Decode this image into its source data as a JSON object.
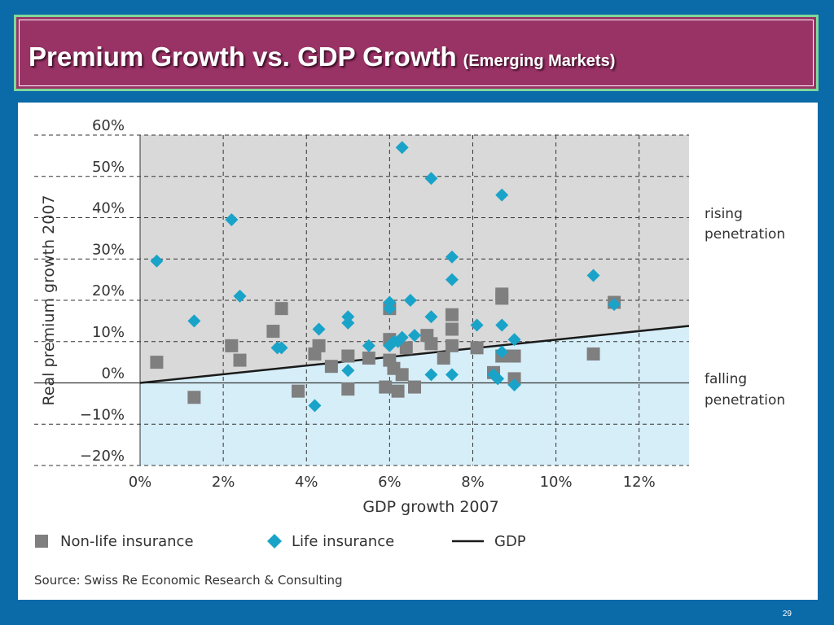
{
  "title": {
    "main": "Premium Growth vs. GDP Growth",
    "sub": "(Emerging Markets)"
  },
  "page_number": "29",
  "colors": {
    "background": "#0b6aa8",
    "title_bar": "#993366",
    "title_border": "#7fd89a",
    "rising_zone": "#d9d9d9",
    "falling_zone": "#d6eef8",
    "nonlife": "#7f7f7f",
    "life": "#1aa3c8",
    "gdp_line": "#1a1a1a"
  },
  "chart_data": {
    "type": "scatter",
    "xlabel": "GDP growth 2007",
    "ylabel": "Real premium growth 2007",
    "xlim": [
      0,
      13.2
    ],
    "ylim": [
      -20,
      60
    ],
    "x_ticks": [
      "0%",
      "2%",
      "4%",
      "6%",
      "8%",
      "10%",
      "12%"
    ],
    "x_tick_values": [
      0,
      2,
      4,
      6,
      8,
      10,
      12
    ],
    "y_ticks": [
      "60%",
      "50%",
      "40%",
      "30%",
      "20%",
      "10%",
      "0%",
      "−10%",
      "−20%"
    ],
    "y_tick_values": [
      60,
      50,
      40,
      30,
      20,
      10,
      0,
      -10,
      -20
    ],
    "grid": true,
    "region_labels": {
      "rising": [
        "rising",
        "penetration"
      ],
      "falling": [
        "falling",
        "penetration"
      ]
    },
    "legend": {
      "placement": "bottom",
      "nonlife": "Non-life insurance",
      "life": "Life insurance",
      "gdp": "GDP"
    },
    "source": "Source: Swiss Re Economic Research & Consulting",
    "gdp_line": {
      "x": [
        0,
        13.2
      ],
      "y": [
        0,
        13.8
      ]
    },
    "series": [
      {
        "name": "Non-life insurance",
        "marker": "square",
        "points": [
          [
            0.4,
            5
          ],
          [
            1.3,
            -3.5
          ],
          [
            2.2,
            9
          ],
          [
            2.4,
            5.5
          ],
          [
            3.2,
            12.5
          ],
          [
            3.4,
            18
          ],
          [
            3.8,
            -2
          ],
          [
            4.2,
            7
          ],
          [
            4.3,
            9
          ],
          [
            4.6,
            4
          ],
          [
            5.0,
            6.5
          ],
          [
            5.0,
            -1.5
          ],
          [
            5.5,
            6
          ],
          [
            5.9,
            -1
          ],
          [
            6.0,
            5.5
          ],
          [
            6.0,
            10.5
          ],
          [
            6.0,
            18
          ],
          [
            6.1,
            3.5
          ],
          [
            6.2,
            -2
          ],
          [
            6.3,
            2
          ],
          [
            6.4,
            8.5
          ],
          [
            6.6,
            -1
          ],
          [
            6.9,
            11.5
          ],
          [
            7.0,
            9.5
          ],
          [
            7.3,
            6
          ],
          [
            7.5,
            16.5
          ],
          [
            7.5,
            13
          ],
          [
            7.5,
            9
          ],
          [
            8.1,
            8.5
          ],
          [
            8.5,
            2.5
          ],
          [
            8.7,
            21.5
          ],
          [
            8.7,
            20.5
          ],
          [
            8.7,
            6.5
          ],
          [
            9.0,
            6.5
          ],
          [
            9.0,
            1
          ],
          [
            10.9,
            7
          ],
          [
            11.4,
            19.5
          ]
        ]
      },
      {
        "name": "Life insurance",
        "marker": "diamond",
        "points": [
          [
            0.4,
            29.5
          ],
          [
            1.3,
            15
          ],
          [
            2.2,
            39.5
          ],
          [
            2.4,
            21
          ],
          [
            3.3,
            8.5
          ],
          [
            3.4,
            8.5
          ],
          [
            4.2,
            -5.5
          ],
          [
            4.3,
            13
          ],
          [
            5.0,
            16
          ],
          [
            5.0,
            14.5
          ],
          [
            5.0,
            3
          ],
          [
            5.5,
            9
          ],
          [
            6.0,
            19.5
          ],
          [
            6.0,
            18
          ],
          [
            6.0,
            9
          ],
          [
            6.1,
            10
          ],
          [
            6.2,
            10
          ],
          [
            6.3,
            11
          ],
          [
            6.3,
            57
          ],
          [
            6.5,
            20
          ],
          [
            6.6,
            11.5
          ],
          [
            7.0,
            49.5
          ],
          [
            7.0,
            16
          ],
          [
            7.0,
            2
          ],
          [
            7.5,
            30.5
          ],
          [
            7.5,
            25
          ],
          [
            7.5,
            2
          ],
          [
            8.1,
            14
          ],
          [
            8.5,
            2
          ],
          [
            8.6,
            1
          ],
          [
            8.7,
            45.5
          ],
          [
            8.7,
            14
          ],
          [
            8.7,
            7.5
          ],
          [
            9.0,
            10.5
          ],
          [
            9.0,
            -0.5
          ],
          [
            10.9,
            26
          ],
          [
            11.4,
            19
          ]
        ]
      }
    ]
  }
}
